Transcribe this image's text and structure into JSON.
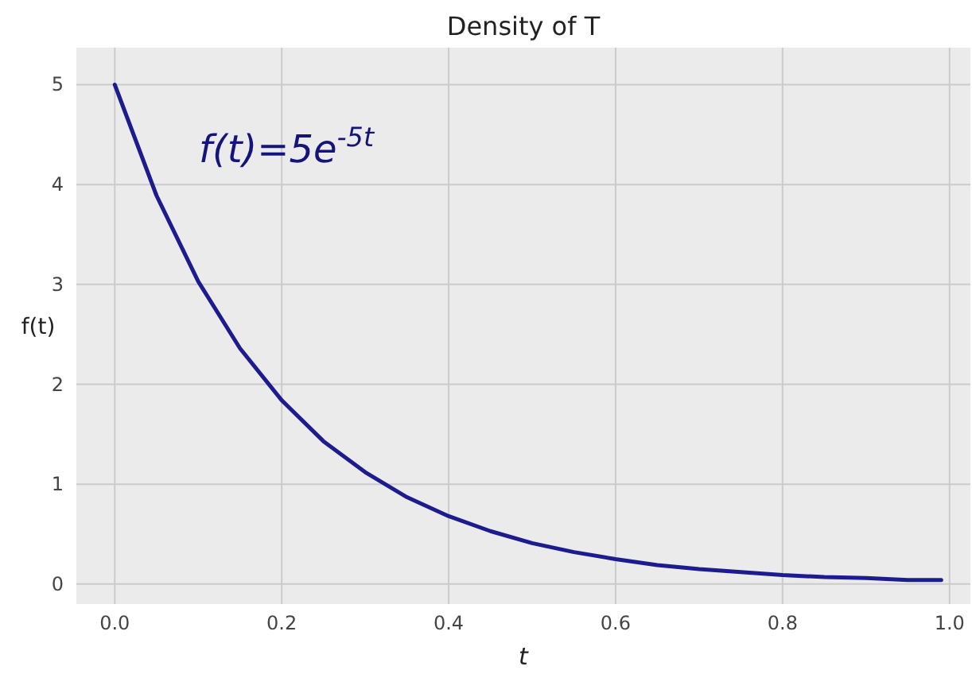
{
  "chart_data": {
    "type": "line",
    "title": "Density of T",
    "xlabel": "t",
    "ylabel": "f(t)",
    "x": [
      0,
      0.05,
      0.1,
      0.15,
      0.2,
      0.25,
      0.3,
      0.35,
      0.4,
      0.45,
      0.5,
      0.55,
      0.6,
      0.65,
      0.7,
      0.75,
      0.8,
      0.85,
      0.9,
      0.95,
      0.99
    ],
    "series": [
      {
        "color": "#1c1c8f",
        "values": [
          5,
          3.89,
          3.03,
          2.36,
          1.84,
          1.43,
          1.12,
          0.87,
          0.68,
          0.53,
          0.41,
          0.32,
          0.25,
          0.19,
          0.15,
          0.12,
          0.09,
          0.07,
          0.06,
          0.04,
          0.04
        ]
      }
    ],
    "xlim": [
      -0.046,
      1.025
    ],
    "ylim": [
      -0.2,
      5.37
    ],
    "xticks": [
      {
        "value": 0,
        "label": "0.0"
      },
      {
        "value": 0.2,
        "label": "0.2"
      },
      {
        "value": 0.4,
        "label": "0.4"
      },
      {
        "value": 0.6,
        "label": "0.6"
      },
      {
        "value": 0.8,
        "label": "0.8"
      },
      {
        "value": 1,
        "label": "1.0"
      }
    ],
    "yticks": [
      0,
      1,
      2,
      3,
      4,
      5
    ],
    "grid": true,
    "marker": "none",
    "line_style": "solid",
    "annotations": [
      "f(t)=5e$^{-5t}$"
    ]
  }
}
